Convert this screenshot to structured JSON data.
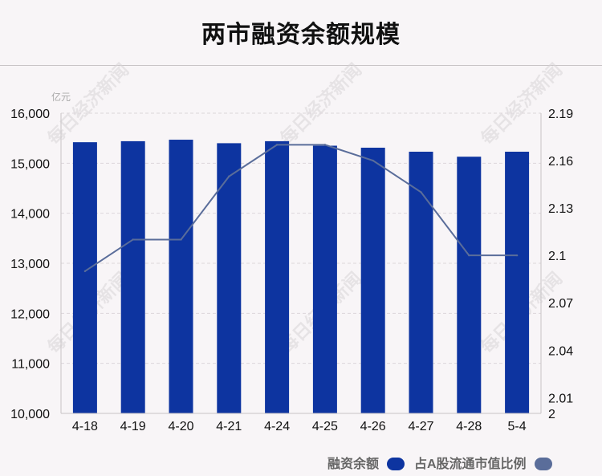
{
  "title": "两市融资余额规模",
  "watermark": "每日经济新闻",
  "chart_data": {
    "type": "bar+line",
    "categories": [
      "4-18",
      "4-19",
      "4-20",
      "4-21",
      "4-24",
      "4-25",
      "4-26",
      "4-27",
      "4-28",
      "5-4"
    ],
    "series": [
      {
        "name": "融资余额",
        "kind": "bar",
        "axis": "left",
        "color": "#0d34a0",
        "values": [
          15420,
          15440,
          15470,
          15400,
          15440,
          15350,
          15310,
          15230,
          15130,
          15230
        ]
      },
      {
        "name": "占A股流通市值比例",
        "kind": "line",
        "axis": "right",
        "color": "#5a6d9a",
        "values": [
          2.09,
          2.11,
          2.11,
          2.15,
          2.17,
          2.17,
          2.16,
          2.14,
          2.1,
          2.1
        ]
      }
    ],
    "y_left": {
      "unit_label": "亿元",
      "ylim": [
        10000,
        16000
      ],
      "ticks": [
        "10,000",
        "11,000",
        "12,000",
        "13,000",
        "14,000",
        "15,000",
        "16,000"
      ]
    },
    "y_right": {
      "ylim": [
        2.0,
        2.19
      ],
      "ticks": [
        {
          "value": 2.0,
          "label": "2"
        },
        {
          "value": 2.01,
          "label": "2.01"
        },
        {
          "value": 2.04,
          "label": "2.04"
        },
        {
          "value": 2.07,
          "label": "2.07"
        },
        {
          "value": 2.1,
          "label": "2.1"
        },
        {
          "value": 2.13,
          "label": "2.13"
        },
        {
          "value": 2.16,
          "label": "2.16"
        },
        {
          "value": 2.19,
          "label": "2.19"
        }
      ]
    },
    "grid": true,
    "legend_position": "bottom-right"
  }
}
